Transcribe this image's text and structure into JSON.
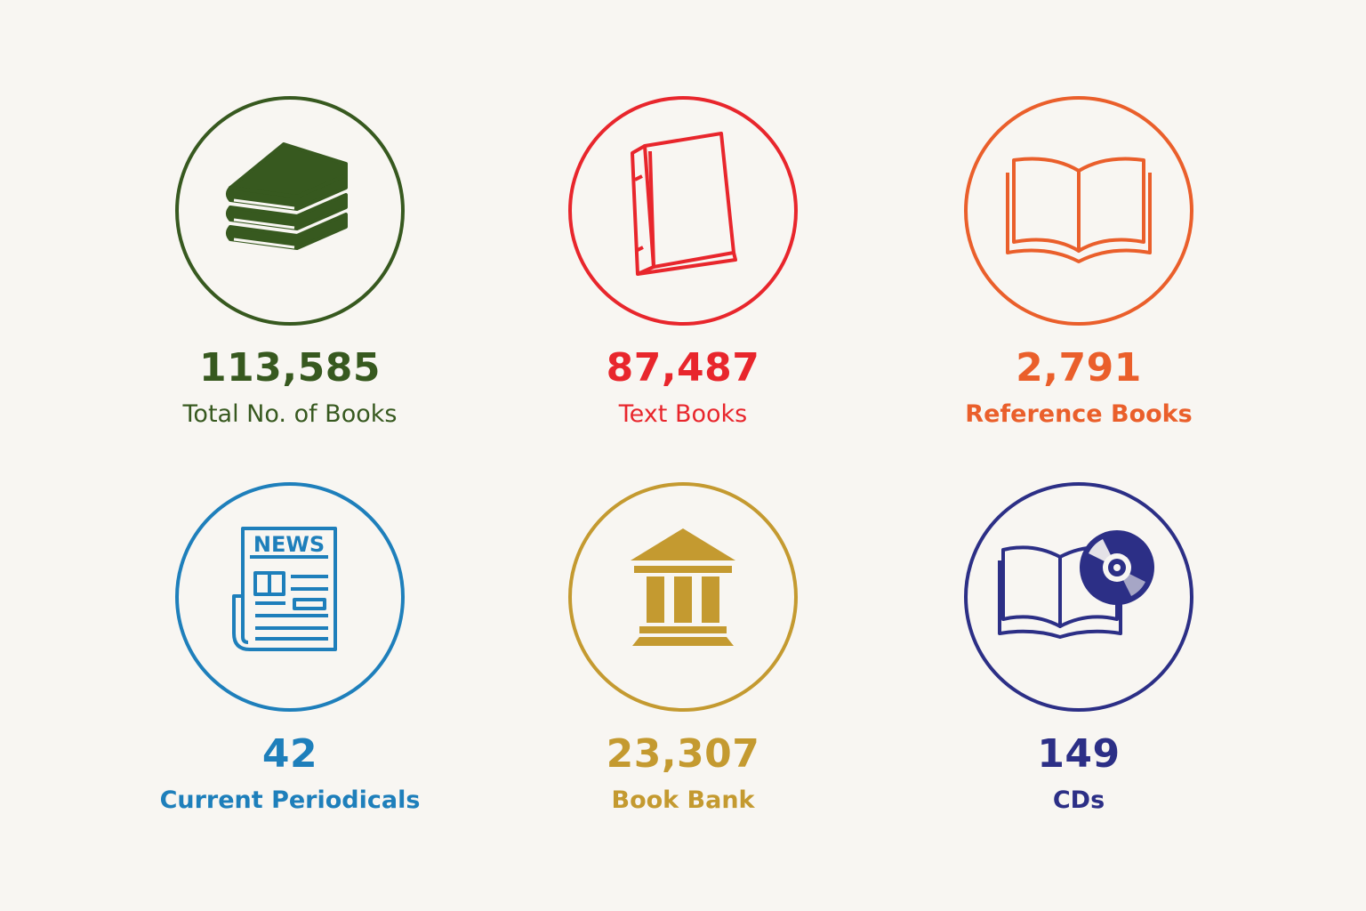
{
  "colors": {
    "total_books": "#37591f",
    "text_books": "#e8262c",
    "reference_books": "#ea5f2b",
    "current_periodicals": "#1e7fbb",
    "book_bank": "#c49a30",
    "cds": "#2c2f86"
  },
  "stats": [
    {
      "key": "total_books",
      "icon": "stacked-books-icon",
      "value": "113,585",
      "label": "Total No. of Books"
    },
    {
      "key": "text_books",
      "icon": "closed-book-icon",
      "value": "87,487",
      "label": "Text Books"
    },
    {
      "key": "reference_books",
      "icon": "open-book-icon",
      "value": "2,791",
      "label": "Reference Books"
    },
    {
      "key": "current_periodicals",
      "icon": "newspaper-icon",
      "value": "42",
      "label": "Current Periodicals",
      "icon_text": "NEWS"
    },
    {
      "key": "book_bank",
      "icon": "bank-building-icon",
      "value": "23,307",
      "label": "Book Bank"
    },
    {
      "key": "cds",
      "icon": "book-with-cd-icon",
      "value": "149",
      "label": "CDs"
    }
  ]
}
